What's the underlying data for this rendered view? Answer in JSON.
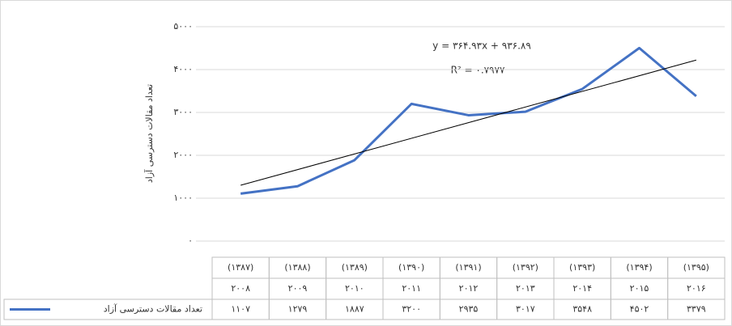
{
  "chart_data": {
    "type": "line",
    "y_label": "تعداد مقالات دسترسی آزاد",
    "categories": [
      [
        "(۱۳۸۷)",
        "۲۰۰۸"
      ],
      [
        "(۱۳۸۸)",
        "۲۰۰۹"
      ],
      [
        "(۱۳۸۹)",
        "۲۰۱۰"
      ],
      [
        "(۱۳۹۰)",
        "۲۰۱۱"
      ],
      [
        "(۱۳۹۱)",
        "۲۰۱۲"
      ],
      [
        "(۱۳۹۲)",
        "۲۰۱۳"
      ],
      [
        "(۱۳۹۳)",
        "۲۰۱۴"
      ],
      [
        "(۱۳۹۴)",
        "۲۰۱۵"
      ],
      [
        "(۱۳۹۵)",
        "۲۰۱۶"
      ]
    ],
    "series": [
      {
        "name": "تعداد مقالات دسترسی آزاد",
        "color": "#4472c4",
        "values": [
          1107,
          1279,
          1887,
          3200,
          2935,
          3017,
          3548,
          4502,
          3379
        ],
        "value_labels": [
          "۱۱۰۷",
          "۱۲۷۹",
          "۱۸۸۷",
          "۳۲۰۰",
          "۲۹۳۵",
          "۳۰۱۷",
          "۳۵۴۸",
          "۴۵۰۲",
          "۳۳۷۹"
        ]
      }
    ],
    "trendline": {
      "slope": 364.93,
      "intercept": 936.89,
      "equation": "y = ۳۶۴.۹۳x + ۹۳۶.۸۹",
      "r2": "R² = ۰.۷۹۷۷",
      "color": "#000000"
    },
    "ylim": [
      0,
      5000
    ],
    "yticks": [
      {
        "value": 0,
        "label": "۰"
      },
      {
        "value": 1000,
        "label": "۱۰۰۰"
      },
      {
        "value": 2000,
        "label": "۲۰۰۰"
      },
      {
        "value": 3000,
        "label": "۳۰۰۰"
      },
      {
        "value": 4000,
        "label": "۴۰۰۰"
      },
      {
        "value": 5000,
        "label": "۵۰۰۰"
      }
    ],
    "grid": true
  }
}
